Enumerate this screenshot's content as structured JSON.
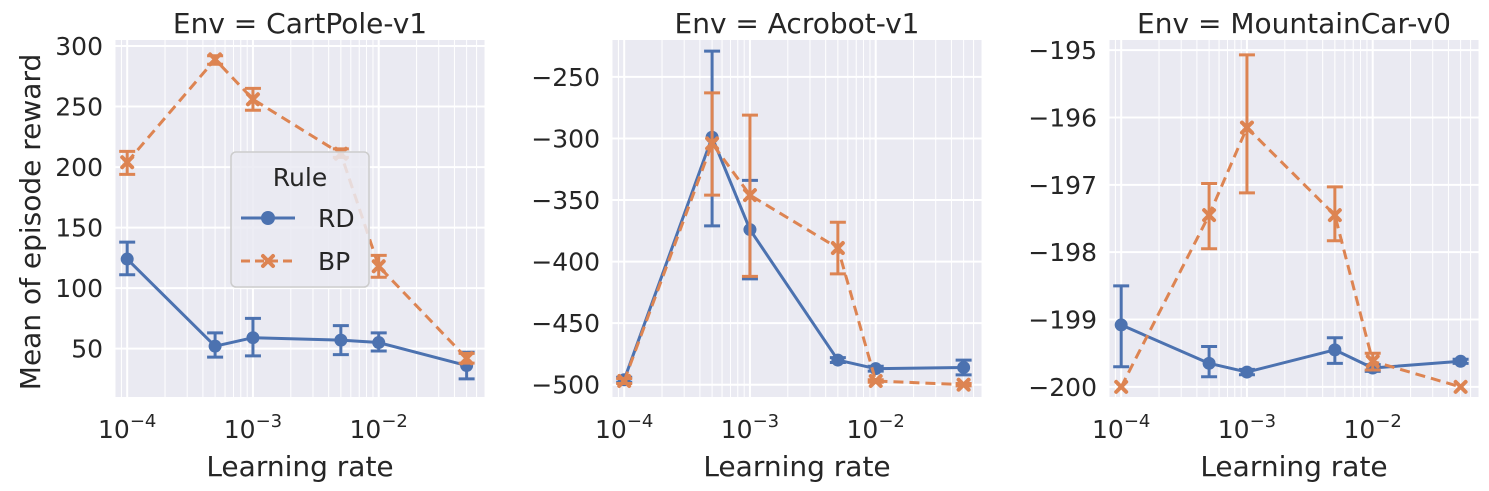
{
  "chart_data": [
    {
      "type": "line",
      "title": "Env = CartPole-v1",
      "xlabel": "Learning rate",
      "ylabel": "Mean of episode reward",
      "xscale": "log",
      "xlim": [
        8e-05,
        0.07
      ],
      "ylim": [
        10,
        305
      ],
      "yticks": [
        50,
        100,
        150,
        200,
        250,
        300
      ],
      "xticks": [
        "10^-4",
        "10^-3",
        "10^-2"
      ],
      "legend": {
        "title": "Rule",
        "placement": "center-right"
      },
      "x": [
        0.0001,
        0.0005,
        0.001,
        0.005,
        0.01,
        0.05
      ],
      "series": [
        {
          "name": "RD",
          "values": [
            124,
            52,
            59,
            57,
            55,
            36
          ],
          "err_low": [
            111,
            43,
            44,
            45,
            48,
            25
          ],
          "err_high": [
            138,
            63,
            75,
            69,
            63,
            47
          ]
        },
        {
          "name": "BP",
          "values": [
            204,
            289,
            256,
            211,
            118,
            42
          ],
          "err_low": [
            194,
            285,
            247,
            208,
            109,
            38
          ],
          "err_high": [
            213,
            292,
            265,
            215,
            127,
            46
          ]
        }
      ]
    },
    {
      "type": "line",
      "title": "Env = Acrobot-v1",
      "xlabel": "Learning rate",
      "ylabel": "",
      "xscale": "log",
      "xlim": [
        8e-05,
        0.07
      ],
      "ylim": [
        -510,
        -220
      ],
      "yticks": [
        -500,
        -450,
        -400,
        -350,
        -300,
        -250
      ],
      "xticks": [
        "10^-4",
        "10^-3",
        "10^-2"
      ],
      "x": [
        0.0001,
        0.0005,
        0.001,
        0.005,
        0.01,
        0.05
      ],
      "series": [
        {
          "name": "RD",
          "values": [
            -496,
            -299,
            -374,
            -480,
            -487,
            -486
          ],
          "err_low": [
            -498,
            -371,
            -414,
            -482,
            -489,
            -492
          ],
          "err_high": [
            -494,
            -229,
            -334,
            -478,
            -485,
            -480
          ]
        },
        {
          "name": "BP",
          "values": [
            -497,
            -304,
            -346,
            -389,
            -497,
            -500
          ],
          "err_low": [
            -499,
            -346,
            -412,
            -410,
            -498,
            -501
          ],
          "err_high": [
            -495,
            -263,
            -281,
            -368,
            -496,
            -499
          ]
        }
      ]
    },
    {
      "type": "line",
      "title": "Env = MountainCar-v0",
      "xlabel": "Learning rate",
      "ylabel": "",
      "xscale": "log",
      "xlim": [
        8e-05,
        0.07
      ],
      "ylim": [
        -200.15,
        -194.85
      ],
      "yticks": [
        -200,
        -199,
        -198,
        -197,
        -196,
        -195
      ],
      "xticks": [
        "10^-4",
        "10^-3",
        "10^-2"
      ],
      "x": [
        0.0001,
        0.0005,
        0.001,
        0.005,
        0.01,
        0.05
      ],
      "series": [
        {
          "name": "RD",
          "values": [
            -199.08,
            -199.65,
            -199.78,
            -199.45,
            -199.72,
            -199.62
          ],
          "err_low": [
            -199.7,
            -199.85,
            -199.82,
            -199.65,
            -199.77,
            -199.65
          ],
          "err_high": [
            -198.5,
            -199.4,
            -199.74,
            -199.27,
            -199.67,
            -199.59
          ]
        },
        {
          "name": "BP",
          "values": [
            -200,
            -197.45,
            -196.15,
            -197.45,
            -199.62,
            -200
          ],
          "err_low": [
            -200,
            -197.95,
            -197.12,
            -197.83,
            -199.75,
            -200
          ],
          "err_high": [
            -200,
            -196.98,
            -195.07,
            -197.03,
            -199.5,
            -200
          ]
        }
      ]
    }
  ],
  "colors": {
    "RD": "#4C72B0",
    "BP": "#DD8452"
  }
}
